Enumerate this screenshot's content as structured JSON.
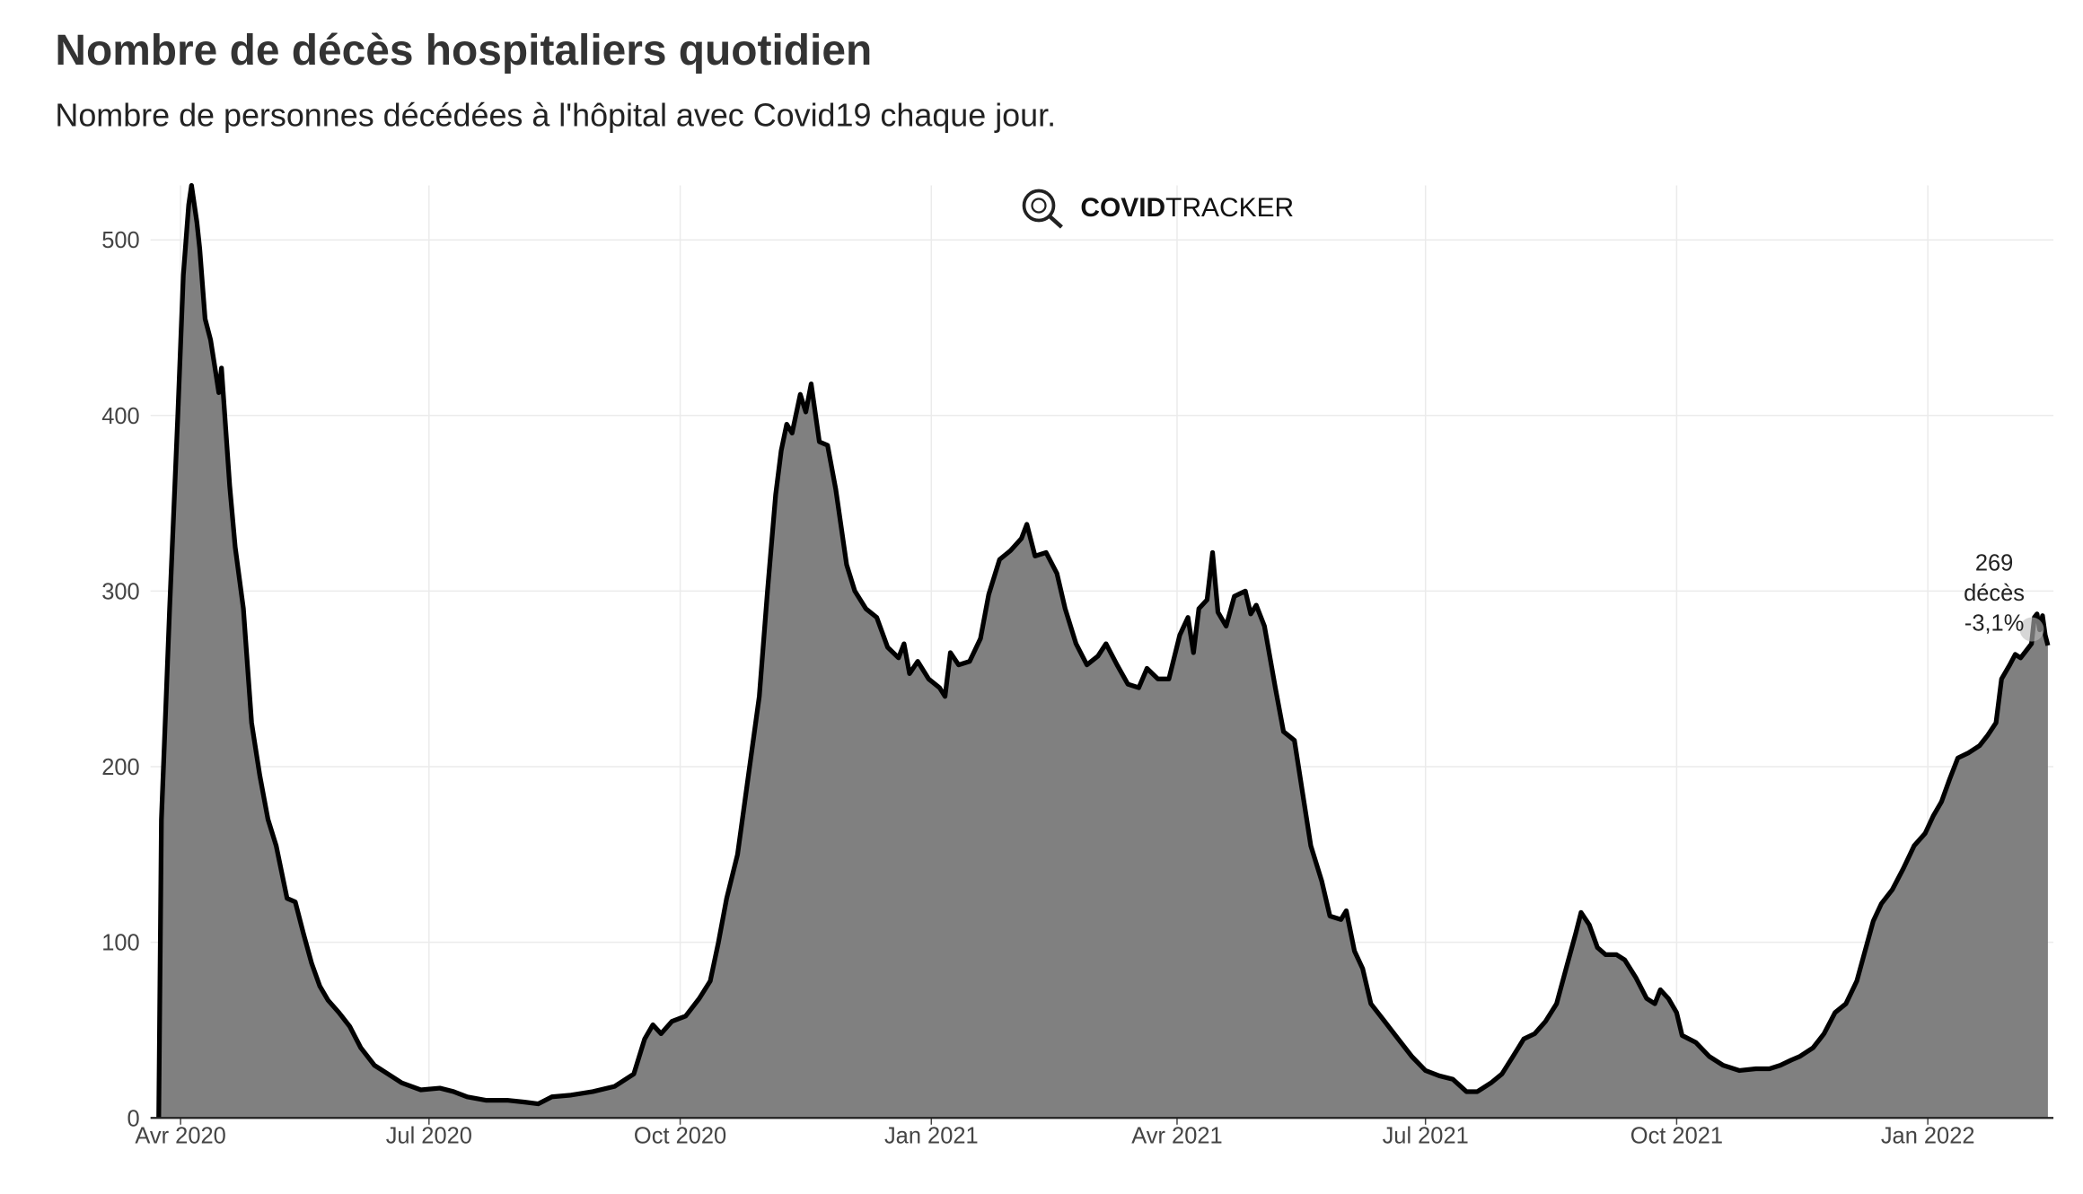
{
  "chart_data": {
    "type": "area",
    "title": "Nombre de décès hospitaliers quotidien",
    "subtitle": "Nombre de personnes décédées à l'hôpital avec Covid19 chaque jour.",
    "logo": {
      "bold": "COVID",
      "light": "TRACKER"
    },
    "annotation": [
      "269",
      "décès",
      "-3,1%"
    ],
    "color": "#808080",
    "line_color": "#000000",
    "grid": true,
    "xlim": [
      "2020-03-21",
      "2022-02-16"
    ],
    "ylim": [
      0,
      531
    ],
    "yticks": [
      0,
      100,
      200,
      300,
      400,
      500
    ],
    "xticks": [
      {
        "value": "2020-04-01",
        "label": "Avr 2020"
      },
      {
        "value": "2020-07-01",
        "label": "Jul 2020"
      },
      {
        "value": "2020-10-01",
        "label": "Oct 2020"
      },
      {
        "value": "2021-01-01",
        "label": "Jan 2021"
      },
      {
        "value": "2021-04-01",
        "label": "Avr 2021"
      },
      {
        "value": "2021-07-01",
        "label": "Jul 2021"
      },
      {
        "value": "2021-10-01",
        "label": "Oct 2021"
      },
      {
        "value": "2022-01-01",
        "label": "Jan 2022"
      }
    ],
    "x": [
      "2020-03-24",
      "2020-03-25",
      "2020-03-28",
      "2020-03-31",
      "2020-04-02",
      "2020-04-04",
      "2020-04-05",
      "2020-04-07",
      "2020-04-08",
      "2020-04-10",
      "2020-04-12",
      "2020-04-14",
      "2020-04-15",
      "2020-04-16",
      "2020-04-19",
      "2020-04-21",
      "2020-04-24",
      "2020-04-27",
      "2020-04-30",
      "2020-05-03",
      "2020-05-06",
      "2020-05-10",
      "2020-05-13",
      "2020-05-16",
      "2020-05-19",
      "2020-05-22",
      "2020-05-25",
      "2020-05-29",
      "2020-06-02",
      "2020-06-06",
      "2020-06-11",
      "2020-06-16",
      "2020-06-21",
      "2020-06-28",
      "2020-07-05",
      "2020-07-10",
      "2020-07-15",
      "2020-07-22",
      "2020-07-30",
      "2020-08-05",
      "2020-08-10",
      "2020-08-15",
      "2020-08-22",
      "2020-08-30",
      "2020-09-07",
      "2020-09-14",
      "2020-09-18",
      "2020-09-21",
      "2020-09-24",
      "2020-09-28",
      "2020-10-03",
      "2020-10-08",
      "2020-10-12",
      "2020-10-15",
      "2020-10-18",
      "2020-10-22",
      "2020-10-26",
      "2020-10-30",
      "2020-11-02",
      "2020-11-05",
      "2020-11-07",
      "2020-11-09",
      "2020-11-11",
      "2020-11-14",
      "2020-11-16",
      "2020-11-18",
      "2020-11-21",
      "2020-11-24",
      "2020-11-27",
      "2020-12-01",
      "2020-12-04",
      "2020-12-08",
      "2020-12-12",
      "2020-12-16",
      "2020-12-20",
      "2020-12-22",
      "2020-12-24",
      "2020-12-27",
      "2020-12-31",
      "2021-01-04",
      "2021-01-06",
      "2021-01-08",
      "2021-01-11",
      "2021-01-15",
      "2021-01-19",
      "2021-01-22",
      "2021-01-26",
      "2021-01-30",
      "2021-02-03",
      "2021-02-05",
      "2021-02-08",
      "2021-02-12",
      "2021-02-16",
      "2021-02-19",
      "2021-02-23",
      "2021-02-27",
      "2021-03-03",
      "2021-03-06",
      "2021-03-10",
      "2021-03-14",
      "2021-03-18",
      "2021-03-21",
      "2021-03-25",
      "2021-03-29",
      "2021-04-02",
      "2021-04-05",
      "2021-04-07",
      "2021-04-09",
      "2021-04-12",
      "2021-04-14",
      "2021-04-16",
      "2021-04-19",
      "2021-04-22",
      "2021-04-26",
      "2021-04-28",
      "2021-04-30",
      "2021-05-03",
      "2021-05-07",
      "2021-05-10",
      "2021-05-14",
      "2021-05-17",
      "2021-05-20",
      "2021-05-24",
      "2021-05-27",
      "2021-05-31",
      "2021-06-02",
      "2021-06-05",
      "2021-06-08",
      "2021-06-11",
      "2021-06-16",
      "2021-06-21",
      "2021-06-26",
      "2021-07-01",
      "2021-07-06",
      "2021-07-11",
      "2021-07-16",
      "2021-07-20",
      "2021-07-25",
      "2021-07-29",
      "2021-08-02",
      "2021-08-06",
      "2021-08-10",
      "2021-08-14",
      "2021-08-18",
      "2021-08-22",
      "2021-08-25",
      "2021-08-27",
      "2021-08-30",
      "2021-09-02",
      "2021-09-05",
      "2021-09-09",
      "2021-09-12",
      "2021-09-16",
      "2021-09-20",
      "2021-09-23",
      "2021-09-25",
      "2021-09-28",
      "2021-10-01",
      "2021-10-03",
      "2021-10-08",
      "2021-10-13",
      "2021-10-18",
      "2021-10-24",
      "2021-10-30",
      "2021-11-04",
      "2021-11-08",
      "2021-11-12",
      "2021-11-15",
      "2021-11-20",
      "2021-11-24",
      "2021-11-28",
      "2021-12-02",
      "2021-12-06",
      "2021-12-09",
      "2021-12-12",
      "2021-12-15",
      "2021-12-19",
      "2021-12-23",
      "2021-12-27",
      "2021-12-31",
      "2022-01-03",
      "2022-01-06",
      "2022-01-09",
      "2022-01-12",
      "2022-01-16",
      "2022-01-20",
      "2022-01-23",
      "2022-01-26",
      "2022-01-28",
      "2022-01-31",
      "2022-02-02",
      "2022-02-04",
      "2022-02-06",
      "2022-02-08",
      "2022-02-09",
      "2022-02-10",
      "2022-02-11",
      "2022-02-12",
      "2022-02-13",
      "2022-02-14"
    ],
    "values": [
      0,
      170,
      290,
      400,
      480,
      520,
      531,
      510,
      495,
      455,
      443,
      423,
      413,
      427,
      360,
      325,
      290,
      225,
      195,
      170,
      155,
      125,
      123,
      105,
      88,
      75,
      67,
      60,
      52,
      40,
      30,
      25,
      20,
      16,
      17,
      15,
      12,
      10,
      10,
      9,
      8,
      12,
      13,
      15,
      18,
      25,
      45,
      53,
      48,
      55,
      58,
      68,
      78,
      100,
      125,
      150,
      195,
      240,
      300,
      355,
      380,
      395,
      390,
      412,
      402,
      418,
      385,
      383,
      358,
      315,
      300,
      290,
      285,
      268,
      262,
      270,
      253,
      260,
      250,
      245,
      240,
      265,
      258,
      260,
      273,
      298,
      318,
      323,
      330,
      338,
      320,
      322,
      310,
      290,
      270,
      258,
      263,
      270,
      258,
      247,
      245,
      256,
      250,
      250,
      275,
      285,
      265,
      290,
      295,
      322,
      288,
      280,
      297,
      300,
      287,
      292,
      280,
      245,
      220,
      215,
      185,
      155,
      135,
      115,
      113,
      118,
      95,
      85,
      65,
      55,
      45,
      35,
      27,
      24,
      22,
      15,
      15,
      20,
      25,
      35,
      45,
      48,
      55,
      65,
      88,
      105,
      117,
      110,
      97,
      93,
      93,
      90,
      80,
      68,
      65,
      73,
      68,
      60,
      47,
      43,
      35,
      30,
      27,
      28,
      28,
      30,
      33,
      35,
      40,
      48,
      60,
      65,
      78,
      95,
      112,
      122,
      130,
      142,
      155,
      162,
      172,
      180,
      193,
      205,
      208,
      212,
      218,
      225,
      250,
      258,
      264,
      262,
      266,
      270,
      285,
      287,
      278,
      286,
      275,
      269
    ]
  }
}
